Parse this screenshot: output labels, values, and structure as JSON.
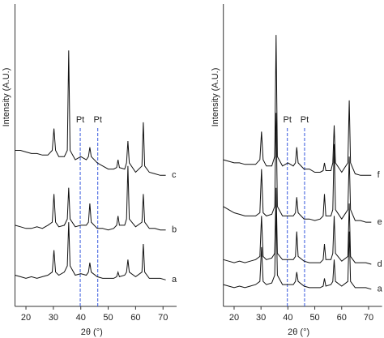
{
  "chart_data": [
    {
      "type": "line",
      "x_label": "2θ (°)",
      "y_label": "Intensity (A.U.)",
      "x": [
        16,
        18,
        20,
        22,
        24,
        26,
        28,
        29.6,
        30.2,
        30.8,
        32,
        34,
        35.1,
        35.6,
        36.1,
        38,
        40,
        42,
        42.8,
        43.3,
        43.8,
        46,
        48,
        50,
        52,
        53.1,
        53.6,
        54.1,
        56,
        56.7,
        57.2,
        57.7,
        60,
        62.3,
        62.8,
        63.3,
        65,
        67,
        69,
        71
      ],
      "xlim": [
        16,
        72
      ],
      "ylim": [
        7,
        100
      ],
      "xticks": [
        20,
        30,
        40,
        50,
        60,
        70
      ],
      "reference_lines": [
        {
          "x": 39.8,
          "label": "Pt",
          "color": "#3355dd"
        },
        {
          "x": 46.2,
          "label": "Pt",
          "color": "#3355dd"
        }
      ],
      "series": [
        {
          "name": "a",
          "color": "#111111",
          "values": [
            17,
            16.5,
            16,
            16.5,
            16,
            16.5,
            17,
            18,
            25,
            18,
            17,
            18,
            20,
            34,
            20,
            17,
            17.5,
            17,
            18,
            21,
            18,
            16.5,
            16,
            16,
            16,
            16.5,
            18,
            16.5,
            17,
            18,
            22,
            18,
            16.5,
            18,
            27,
            18,
            16,
            16,
            16,
            15.5
          ]
        },
        {
          "name": "b",
          "color": "#111111",
          "values": [
            33,
            32.5,
            32,
            32,
            32.5,
            32,
            33,
            34,
            43,
            34,
            32.5,
            33,
            35,
            45,
            35,
            32.5,
            33,
            33,
            34,
            40,
            34,
            32,
            32,
            31.5,
            32,
            33,
            36,
            33,
            33,
            35,
            52,
            35,
            32.5,
            34,
            43,
            34,
            32,
            32,
            31.5,
            31.5
          ]
        },
        {
          "name": "c",
          "color": "#111111",
          "values": [
            57,
            57,
            56.5,
            56,
            56,
            55.5,
            55.5,
            57,
            64,
            57,
            55,
            55,
            57,
            89,
            57,
            54,
            55,
            54,
            55,
            58,
            55,
            53,
            52,
            51,
            51,
            51.5,
            54,
            51.5,
            51,
            53,
            60,
            53,
            50,
            52,
            66,
            52,
            50,
            49.5,
            49,
            49
          ]
        }
      ]
    },
    {
      "type": "line",
      "x_label": "2θ (°)",
      "y_label": "Intensity (A.U.)",
      "x": [
        16,
        18,
        20,
        22,
        24,
        26,
        28,
        29.6,
        30.2,
        30.8,
        32,
        34,
        35.1,
        35.6,
        36.1,
        38,
        40,
        42,
        42.8,
        43.3,
        43.8,
        46,
        48,
        50,
        52,
        53.1,
        53.6,
        54.1,
        56,
        56.7,
        57.2,
        57.7,
        60,
        62.3,
        62.8,
        63.3,
        65,
        67,
        69,
        71
      ],
      "xlim": [
        16,
        72
      ],
      "ylim": [
        7,
        100
      ],
      "xticks": [
        20,
        30,
        40,
        50,
        60,
        70
      ],
      "reference_lines": [
        {
          "x": 39.8,
          "label": "Pt",
          "color": "#3355dd"
        },
        {
          "x": 46.2,
          "label": "Pt",
          "color": "#3355dd"
        }
      ],
      "series": [
        {
          "name": "a",
          "color": "#111111",
          "values": [
            14,
            13.5,
            13,
            13.5,
            13,
            13.5,
            14,
            15,
            26,
            15,
            14,
            14.5,
            17,
            38,
            17,
            14,
            14,
            14,
            15,
            18,
            15,
            13.5,
            13,
            13,
            13,
            13.5,
            16,
            13.5,
            14,
            15,
            22,
            15,
            13.5,
            15,
            31,
            15,
            13,
            13,
            13,
            12.5
          ]
        },
        {
          "name": "d",
          "color": "#111111",
          "values": [
            22,
            21.5,
            21,
            21.5,
            21,
            21.5,
            22,
            23,
            36,
            23,
            22,
            22.5,
            24,
            45,
            24,
            22,
            22,
            22,
            23,
            31,
            23,
            21.5,
            21,
            21,
            21,
            22,
            27,
            22,
            22,
            24,
            36,
            24,
            21.5,
            23,
            40,
            23,
            21,
            21,
            21,
            20.5
          ]
        },
        {
          "name": "e",
          "color": "#111111",
          "values": [
            39,
            38,
            37,
            36.5,
            36,
            36,
            36,
            37,
            51,
            37,
            36,
            36.5,
            39,
            69,
            39,
            36,
            36,
            36,
            37,
            42,
            37,
            35,
            35,
            34.5,
            35,
            36,
            43,
            36,
            36,
            38,
            59,
            38,
            35,
            38,
            55,
            38,
            34.5,
            34.5,
            34,
            34
          ]
        },
        {
          "name": "f",
          "color": "#111111",
          "values": [
            54,
            53.5,
            53,
            53,
            52.5,
            52.5,
            52.5,
            54,
            63,
            54,
            52,
            52,
            55,
            94,
            55,
            52,
            53,
            52,
            53,
            58,
            53,
            51,
            51,
            50,
            50,
            50.5,
            53,
            50.5,
            50.5,
            53,
            65,
            53,
            50,
            53,
            73,
            53,
            49.5,
            49,
            49,
            49
          ]
        }
      ]
    }
  ]
}
